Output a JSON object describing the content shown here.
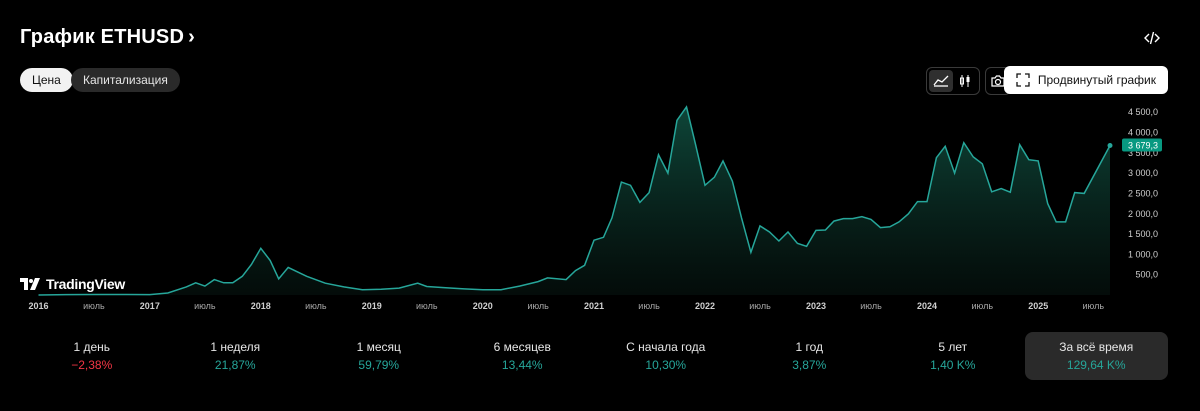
{
  "header": {
    "title": "График ETHUSD",
    "chevron": "›",
    "embed_icon": "code-icon"
  },
  "tabs": [
    {
      "label": "Цена",
      "active": true
    },
    {
      "label": "Капитализация",
      "active": false
    }
  ],
  "toolbar": {
    "line_chart_icon": "area-chart-icon",
    "candles_icon": "candles-icon",
    "snapshot_icon": "camera-icon",
    "advanced_label": "Продвинутый график",
    "advanced_icon": "fullscreen-icon"
  },
  "watermark": "TradingView",
  "chart_data": {
    "type": "area",
    "symbol": "ETHUSD",
    "x": [
      "2016-01",
      "2016-04",
      "2016-07",
      "2016-10",
      "2017-01",
      "2017-03",
      "2017-05",
      "2017-06",
      "2017-07",
      "2017-08",
      "2017-09",
      "2017-10",
      "2017-11",
      "2017-12",
      "2018-01",
      "2018-02",
      "2018-03",
      "2018-04",
      "2018-05",
      "2018-06",
      "2018-08",
      "2018-10",
      "2018-12",
      "2019-02",
      "2019-04",
      "2019-06",
      "2019-07",
      "2019-09",
      "2019-11",
      "2020-01",
      "2020-03",
      "2020-05",
      "2020-07",
      "2020-08",
      "2020-10",
      "2020-11",
      "2020-12",
      "2021-01",
      "2021-02",
      "2021-03",
      "2021-04",
      "2021-05",
      "2021-06",
      "2021-07",
      "2021-08",
      "2021-09",
      "2021-10",
      "2021-11",
      "2021-12",
      "2022-01",
      "2022-02",
      "2022-03",
      "2022-04",
      "2022-05",
      "2022-06",
      "2022-07",
      "2022-08",
      "2022-09",
      "2022-10",
      "2022-11",
      "2022-12",
      "2023-01",
      "2023-02",
      "2023-03",
      "2023-04",
      "2023-05",
      "2023-06",
      "2023-07",
      "2023-08",
      "2023-09",
      "2023-10",
      "2023-11",
      "2023-12",
      "2024-01",
      "2024-02",
      "2024-03",
      "2024-04",
      "2024-05",
      "2024-06",
      "2024-07",
      "2024-08",
      "2024-09",
      "2024-10",
      "2024-11",
      "2024-12",
      "2025-01",
      "2025-02",
      "2025-03",
      "2025-04",
      "2025-05",
      "2025-06",
      "2025-07"
    ],
    "y": [
      1,
      10,
      12,
      12,
      10,
      50,
      200,
      300,
      220,
      380,
      300,
      300,
      460,
      750,
      1150,
      850,
      400,
      680,
      570,
      460,
      290,
      200,
      130,
      140,
      170,
      290,
      210,
      180,
      150,
      130,
      130,
      220,
      330,
      420,
      380,
      600,
      730,
      1350,
      1420,
      1900,
      2780,
      2700,
      2280,
      2520,
      3450,
      3000,
      4300,
      4630,
      3700,
      2700,
      2900,
      3300,
      2800,
      1900,
      1050,
      1700,
      1550,
      1330,
      1550,
      1270,
      1200,
      1590,
      1600,
      1820,
      1880,
      1880,
      1930,
      1860,
      1660,
      1680,
      1800,
      2000,
      2300,
      2300,
      3380,
      3660,
      3000,
      3750,
      3400,
      3230,
      2540,
      2620,
      2530,
      3700,
      3330,
      3300,
      2250,
      1800,
      1800,
      2520,
      2500,
      3679.3
    ],
    "current_value": "3 679,3",
    "y_ticks": [
      "500,0",
      "1 000,0",
      "1 500,0",
      "2 000,0",
      "2 500,0",
      "3 000,0",
      "3 500,0",
      "4 000,0",
      "4 500,0"
    ],
    "y_tick_values": [
      500,
      1000,
      1500,
      2000,
      2500,
      3000,
      3500,
      4000,
      4500
    ],
    "x_ticks": [
      {
        "label": "2016",
        "date": "2016-01",
        "major": true
      },
      {
        "label": "июль",
        "date": "2016-07",
        "major": false
      },
      {
        "label": "2017",
        "date": "2017-01",
        "major": true
      },
      {
        "label": "июль",
        "date": "2017-07",
        "major": false
      },
      {
        "label": "2018",
        "date": "2018-01",
        "major": true
      },
      {
        "label": "июль",
        "date": "2018-07",
        "major": false
      },
      {
        "label": "2019",
        "date": "2019-01",
        "major": true
      },
      {
        "label": "июль",
        "date": "2019-07",
        "major": false
      },
      {
        "label": "2020",
        "date": "2020-01",
        "major": true
      },
      {
        "label": "июль",
        "date": "2020-07",
        "major": false
      },
      {
        "label": "2021",
        "date": "2021-01",
        "major": true
      },
      {
        "label": "июль",
        "date": "2021-07",
        "major": false
      },
      {
        "label": "2022",
        "date": "2022-01",
        "major": true
      },
      {
        "label": "июль",
        "date": "2022-07",
        "major": false
      },
      {
        "label": "2023",
        "date": "2023-01",
        "major": true
      },
      {
        "label": "июль",
        "date": "2023-07",
        "major": false
      },
      {
        "label": "2024",
        "date": "2024-01",
        "major": true
      },
      {
        "label": "июль",
        "date": "2024-07",
        "major": false
      },
      {
        "label": "2025",
        "date": "2025-01",
        "major": true
      },
      {
        "label": "июль",
        "date": "2025-07",
        "major": false
      }
    ],
    "ylim": [
      0,
      4800
    ],
    "grid": false,
    "colors": {
      "line": "#26a69a",
      "fill": "#0c3a30",
      "label_bg": "#089981"
    }
  },
  "periods": [
    {
      "label": "1 день",
      "value": "−2,38%",
      "trend": "neg",
      "selected": false
    },
    {
      "label": "1 неделя",
      "value": "21,87%",
      "trend": "pos",
      "selected": false
    },
    {
      "label": "1 месяц",
      "value": "59,79%",
      "trend": "pos",
      "selected": false
    },
    {
      "label": "6 месяцев",
      "value": "13,44%",
      "trend": "pos",
      "selected": false
    },
    {
      "label": "С начала года",
      "value": "10,30%",
      "trend": "pos",
      "selected": false
    },
    {
      "label": "1 год",
      "value": "3,87%",
      "trend": "pos",
      "selected": false
    },
    {
      "label": "5 лет",
      "value": "1,40 K%",
      "trend": "pos",
      "selected": false
    },
    {
      "label": "За всё время",
      "value": "129,64 K%",
      "trend": "pos",
      "selected": true
    }
  ]
}
